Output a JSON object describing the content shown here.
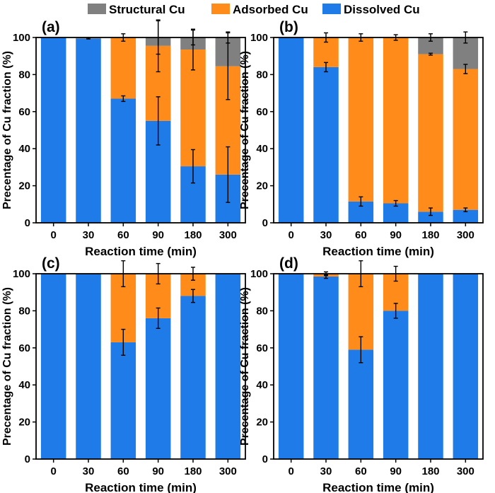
{
  "legend": {
    "placement": "top-center",
    "entries": [
      {
        "label": "Structural Cu",
        "color": "#808080"
      },
      {
        "label": "Adsorbed Cu",
        "color": "#FF8C1A"
      },
      {
        "label": "Dissolved Cu",
        "color": "#1F7BE8"
      }
    ]
  },
  "chart_data": [
    {
      "type": "bar",
      "panel_label": "(a)",
      "stacked": true,
      "categories": [
        "0",
        "30",
        "60",
        "90",
        "180",
        "300"
      ],
      "xlabel": "Reaction time (min)",
      "ylabel": "Precentage of Cu fraction (%)",
      "ylim": [
        0,
        100
      ],
      "yticks": [
        0,
        20,
        40,
        60,
        80,
        100
      ],
      "series": [
        {
          "name": "Dissolved Cu",
          "color": "#1F7BE8",
          "values": [
            100,
            99.5,
            67,
            55,
            30.5,
            26
          ],
          "errors": [
            0,
            0.3,
            1.5,
            13,
            9,
            15
          ]
        },
        {
          "name": "Adsorbed Cu",
          "color": "#FF8C1A",
          "values": [
            0,
            0.5,
            33,
            40.5,
            63,
            58.5
          ],
          "errors": [
            0,
            0,
            2,
            14,
            11,
            18
          ]
        },
        {
          "name": "Structural Cu",
          "color": "#808080",
          "values": [
            0,
            0,
            0,
            4.5,
            6.5,
            15.5
          ],
          "errors": [
            0,
            0,
            0,
            9,
            4,
            3
          ]
        }
      ]
    },
    {
      "type": "bar",
      "panel_label": "(b)",
      "stacked": true,
      "categories": [
        "0",
        "30",
        "60",
        "90",
        "180",
        "300"
      ],
      "xlabel": "Reaction time (min)",
      "ylabel": "Precentage of Cu fraction (%)",
      "ylim": [
        0,
        100
      ],
      "yticks": [
        0,
        20,
        40,
        60,
        80,
        100
      ],
      "series": [
        {
          "name": "Dissolved Cu",
          "color": "#1F7BE8",
          "values": [
            100,
            84,
            11.5,
            10.5,
            6,
            7
          ],
          "errors": [
            0,
            2.5,
            2.5,
            1.5,
            2,
            1
          ]
        },
        {
          "name": "Adsorbed Cu",
          "color": "#FF8C1A",
          "values": [
            0,
            16,
            88.5,
            89.5,
            85,
            76
          ],
          "errors": [
            0,
            2.5,
            2,
            1.5,
            0.5,
            2.5
          ]
        },
        {
          "name": "Structural Cu",
          "color": "#808080",
          "values": [
            0,
            0,
            0,
            0,
            9,
            17
          ],
          "errors": [
            0,
            0,
            0,
            0,
            2,
            3
          ]
        }
      ]
    },
    {
      "type": "bar",
      "panel_label": "(c)",
      "stacked": true,
      "categories": [
        "0",
        "30",
        "60",
        "90",
        "180",
        "300"
      ],
      "xlabel": "Reaction time (min)",
      "ylabel": "Precentage of Cu fraction (%)",
      "ylim": [
        0,
        100
      ],
      "yticks": [
        0,
        20,
        40,
        60,
        80,
        100
      ],
      "series": [
        {
          "name": "Dissolved Cu",
          "color": "#1F7BE8",
          "values": [
            100,
            100,
            63,
            76,
            88,
            100
          ],
          "errors": [
            0,
            0,
            7,
            5.5,
            3.5,
            0
          ]
        },
        {
          "name": "Adsorbed Cu",
          "color": "#FF8C1A",
          "values": [
            0,
            0,
            37,
            24,
            12,
            0
          ],
          "errors": [
            0,
            0,
            7,
            5.5,
            3.5,
            0
          ]
        },
        {
          "name": "Structural Cu",
          "color": "#808080",
          "values": [
            0,
            0,
            0,
            0,
            0,
            0
          ],
          "errors": [
            0,
            0,
            0,
            0,
            0,
            0
          ]
        }
      ]
    },
    {
      "type": "bar",
      "panel_label": "(d)",
      "stacked": true,
      "categories": [
        "0",
        "30",
        "60",
        "90",
        "180",
        "300"
      ],
      "xlabel": "Reaction time (min)",
      "ylabel": "Precentage of Cu fraction (%)",
      "ylim": [
        0,
        100
      ],
      "yticks": [
        0,
        20,
        40,
        60,
        80,
        100
      ],
      "series": [
        {
          "name": "Dissolved Cu",
          "color": "#1F7BE8",
          "values": [
            100,
            98.5,
            59,
            80,
            100,
            100
          ],
          "errors": [
            0,
            1,
            7,
            4,
            0,
            0
          ]
        },
        {
          "name": "Adsorbed Cu",
          "color": "#FF8C1A",
          "values": [
            0,
            1.5,
            41,
            20,
            0,
            0
          ],
          "errors": [
            0,
            1,
            7,
            4,
            0,
            0
          ]
        },
        {
          "name": "Structural Cu",
          "color": "#808080",
          "values": [
            0,
            0,
            0,
            0,
            0,
            0
          ],
          "errors": [
            0,
            0,
            0,
            0,
            0,
            0
          ]
        }
      ]
    }
  ]
}
